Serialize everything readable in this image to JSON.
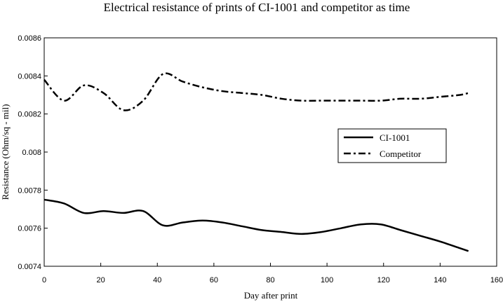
{
  "chart_data": {
    "type": "line",
    "title": "Electrical resistance of prints of CI-1001 and competitor as time",
    "xlabel": "Day after print",
    "ylabel": "Resistance (Ohm/sq - mil)",
    "xlim": [
      0,
      160
    ],
    "ylim": [
      0.0074,
      0.0086
    ],
    "xticks": [
      0,
      20,
      40,
      60,
      80,
      100,
      120,
      140,
      160
    ],
    "xtick_labels": [
      "0",
      "20",
      "40",
      "60",
      "80",
      "100",
      "120",
      "140",
      "160"
    ],
    "yticks": [
      0.0074,
      0.0076,
      0.0078,
      0.008,
      0.0082,
      0.0084,
      0.0086
    ],
    "ytick_labels": [
      "0.0074",
      "0.0076",
      "0.0078",
      "0.008",
      "0.0082",
      "0.0084",
      "0.0086"
    ],
    "grid": false,
    "legend_position": "right",
    "series": [
      {
        "name": "CI-1001",
        "style": "solid",
        "color": "#000000",
        "x": [
          0,
          7,
          14,
          21,
          28,
          35,
          42,
          49,
          56,
          63,
          70,
          77,
          84,
          91,
          98,
          105,
          112,
          119,
          126,
          133,
          140,
          147,
          150
        ],
        "y": [
          0.00775,
          0.00773,
          0.00768,
          0.00769,
          0.00768,
          0.00769,
          0.007615,
          0.00763,
          0.00764,
          0.00763,
          0.00761,
          0.00759,
          0.00758,
          0.00757,
          0.00758,
          0.0076,
          0.00762,
          0.00762,
          0.00759,
          0.00756,
          0.00753,
          0.007495,
          0.00748
        ]
      },
      {
        "name": "Competitor",
        "style": "dashdot",
        "color": "#000000",
        "x": [
          0,
          7,
          14,
          21,
          28,
          35,
          42,
          49,
          56,
          63,
          70,
          77,
          84,
          91,
          98,
          105,
          112,
          119,
          126,
          133,
          140,
          147,
          150
        ],
        "y": [
          0.00838,
          0.00827,
          0.00835,
          0.00831,
          0.00822,
          0.00827,
          0.00841,
          0.00837,
          0.00834,
          0.00832,
          0.00831,
          0.0083,
          0.00828,
          0.00827,
          0.00827,
          0.00827,
          0.00827,
          0.00827,
          0.00828,
          0.00828,
          0.00829,
          0.0083,
          0.00831
        ]
      }
    ]
  }
}
